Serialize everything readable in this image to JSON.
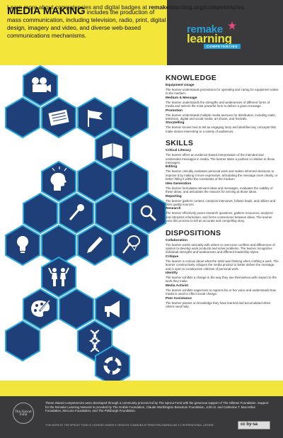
{
  "header": {
    "title_strong": "MEDIA MAKING",
    "title_rest": " includes the production of mass communication, including television, radio, print, digital design, imagery and video, and diverse web-based communications mechanisms."
  },
  "logo": {
    "line1": "remake",
    "line2": "learning",
    "line3": "COMPETENCIES"
  },
  "sections": {
    "knowledge": {
      "title": "KNOWLEDGE",
      "items": [
        {
          "title": "Equipment Usage",
          "desc": "The learner understands procedures for operating and caring for equipment native to the medium."
        },
        {
          "title": "Medium & Message",
          "desc": "The learner understands the strengths and weaknesses of different forms of media and selects the most powerful form to deliver a given message."
        },
        {
          "title": "Promotion",
          "desc": "The learner understands multiple media avenues for distribution, including radio, television, digital and social media, art shows, and festivals."
        },
        {
          "title": "Storytelling",
          "desc": "The learner knows how to tell an engaging story and identifies key concepts that make stories interesting to a variety of audiences."
        }
      ]
    },
    "skills": {
      "title": "SKILLS",
      "items": [
        {
          "title": "Critical Literacy",
          "desc": "The learner offers an evidence-based interpretation of the intended and unintended messages in media. The learner takes a position in relation to these messages."
        },
        {
          "title": "Editing",
          "desc": "The learner critically evaluates personal work and makes informed decisions to improve it by making it more expressive, articulating the message more clearly, or better fitting it within the constraints of the medium."
        },
        {
          "title": "Idea Generation",
          "desc": "The learner formulates relevant ideas and messages, evaluates the viability of these ideas, and articulates the reasons for arriving at those ideas."
        },
        {
          "title": "Reporting",
          "desc": "The learner gathers content, conducts interviews, follows leads, and utilizes and cites quality sources."
        },
        {
          "title": "Research",
          "desc": "The learner effectively poses research questions, gathers resources, analyzes and interprets information, and forms connections between ideas. The learner uses this process to tell an accurate and compelling story."
        }
      ]
    },
    "dispositions": {
      "title": "DISPOSITIONS",
      "items": [
        {
          "title": "Collaboration",
          "desc": "The learner works amicably with others to overcome conflicts and differences of opinion to develop work products and solve problems. The learner recognizes individual strengths and weaknesses and different leadership styles."
        },
        {
          "title": "Critique",
          "desc": "The learner is curious about what the artist was thinking when crafting a work. The learner constructively critiques the media product to better deliver the message, and is open to constructive criticism of personal work."
        },
        {
          "title": "Identity",
          "desc": "The learner exhibits a change in the way they see themselves with respect to the work they make."
        },
        {
          "title": "Media Activist",
          "desc": "The learner exhibits eagerness to express his or her voice and understands how media is used to effect social change."
        },
        {
          "title": "Peer Assistance",
          "desc": "The learner passes on knowledge they have learned and accumulated when others need help."
        }
      ]
    }
  },
  "banner": {
    "text": "Learn more about competencies and digital badges at ",
    "link": "remakelearning.org/competencies."
  },
  "footer": {
    "sprout": "The Sprout Fund",
    "text": "These shared competencies were developed through a community process led by The Sprout Fund with the generous support of The Hillman Foundation. Support for the Remake Learning Network is provided by The Grable Foundation, Claude Worthington Benedum Foundation, John D. and Catherine T. MacArthur Foundation, McCune Foundation, and The Pittsburgh Foundation.",
    "license": "THIS WORK BY THE SPROUT FUND IS LICENSED UNDER A CREATIVE COMMONS ATTRIBUTION-SHAREALIKE 4.0 INTERNATIONAL LICENSE.",
    "cc": "cc by-sa"
  },
  "icons": [
    "film-camera-icon",
    "newspaper-icon",
    "flag-icon",
    "book-icon",
    "head-idea-icon",
    "microphone-icon",
    "magnifier-icon",
    "lightbulb-icon",
    "pen-icon",
    "net-icon",
    "people-icon",
    "palette-icon",
    "dna-icon",
    "megaphone-icon",
    "life-ring-icon"
  ],
  "colors": {
    "yellow": "#f3e53a",
    "dark": "#3a3a3c",
    "hex_fill": "#1e3f77",
    "hex_stroke": "#2aa8e0"
  }
}
